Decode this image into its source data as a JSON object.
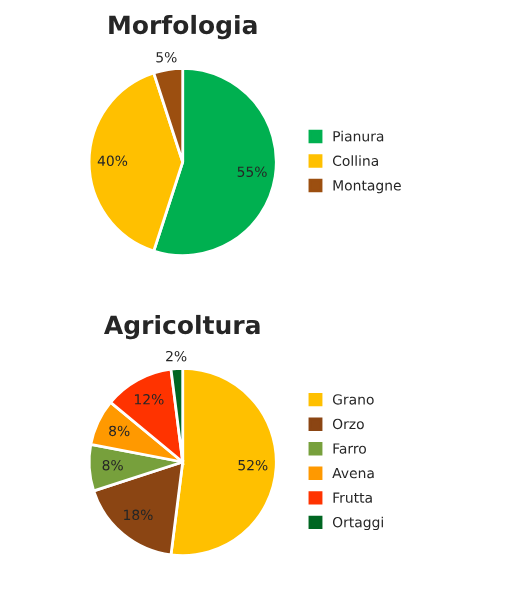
{
  "chart_data": [
    {
      "type": "pie",
      "title": "Morfologia",
      "categories": [
        "Pianura",
        "Collina",
        "Montagne"
      ],
      "values": [
        55,
        40,
        5
      ],
      "colors": [
        "#00b050",
        "#ffc000",
        "#9c4f10"
      ],
      "value_labels": [
        "55%",
        "40%",
        "5%"
      ],
      "legend": "right"
    },
    {
      "type": "pie",
      "title": "Agricoltura",
      "categories": [
        "Grano",
        "Orzo",
        "Farro",
        "Avena",
        "Frutta",
        "Ortaggi"
      ],
      "values": [
        52,
        18,
        8,
        8,
        12,
        2
      ],
      "colors": [
        "#ffc000",
        "#8b4513",
        "#77a03c",
        "#ff9900",
        "#ff3300",
        "#006622"
      ],
      "value_labels": [
        "52%",
        "18%",
        "8%",
        "8%",
        "12%",
        "2%"
      ],
      "legend": "right"
    }
  ]
}
